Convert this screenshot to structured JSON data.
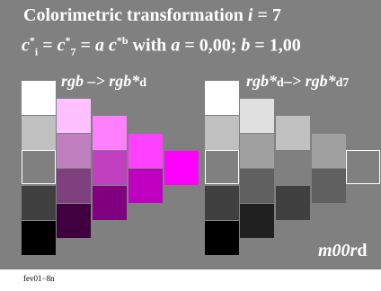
{
  "figure": {
    "title_text": "Colorimetric transformation",
    "title_var": "i",
    "title_eq": " = 7",
    "formula": {
      "c1": "c",
      "sup1": "*",
      "sub1": "i",
      "eq1": " = ",
      "c2": "c",
      "sup2": "*",
      "sub2": "7",
      "eq2": " = ",
      "a_coef": "a",
      "c3": " c",
      "sup3": "*b",
      "with_text": " with ",
      "a_var": "a",
      "a_eq": " = 0,00; ",
      "b_var": "b",
      "b_eq": " = 1,00"
    },
    "left_label": {
      "main": "rgb  –> rgb*",
      "suffix": "d"
    },
    "right_label": {
      "main": "rgb*",
      "mid": "d",
      "arrow": "–> rgb*",
      "suffix": "d7"
    },
    "code": {
      "main": "m00r",
      "suffix": "d"
    },
    "caption": "fev01−8n"
  },
  "colors": {
    "background": "#808080",
    "left_columns": [
      [
        "#ffffff",
        "#c0c0c0",
        "#808080",
        "#404040",
        "#000000"
      ],
      [
        "#ffc0ff",
        "#c080c0",
        "#804080",
        "#400040"
      ],
      [
        "#ff80ff",
        "#c040c0",
        "#800080"
      ],
      [
        "#ff40ff",
        "#c000c0"
      ],
      [
        "#ff00ff"
      ]
    ],
    "right_columns": [
      [
        "#ffffff",
        "#c0c0c0",
        "#808080",
        "#404040",
        "#000000"
      ],
      [
        "#e0e0e0",
        "#a0a0a0",
        "#606060",
        "#202020"
      ],
      [
        "#c0c0c0",
        "#808080",
        "#404040"
      ],
      [
        "#a0a0a0",
        "#606060"
      ],
      [
        "#808080"
      ]
    ]
  }
}
